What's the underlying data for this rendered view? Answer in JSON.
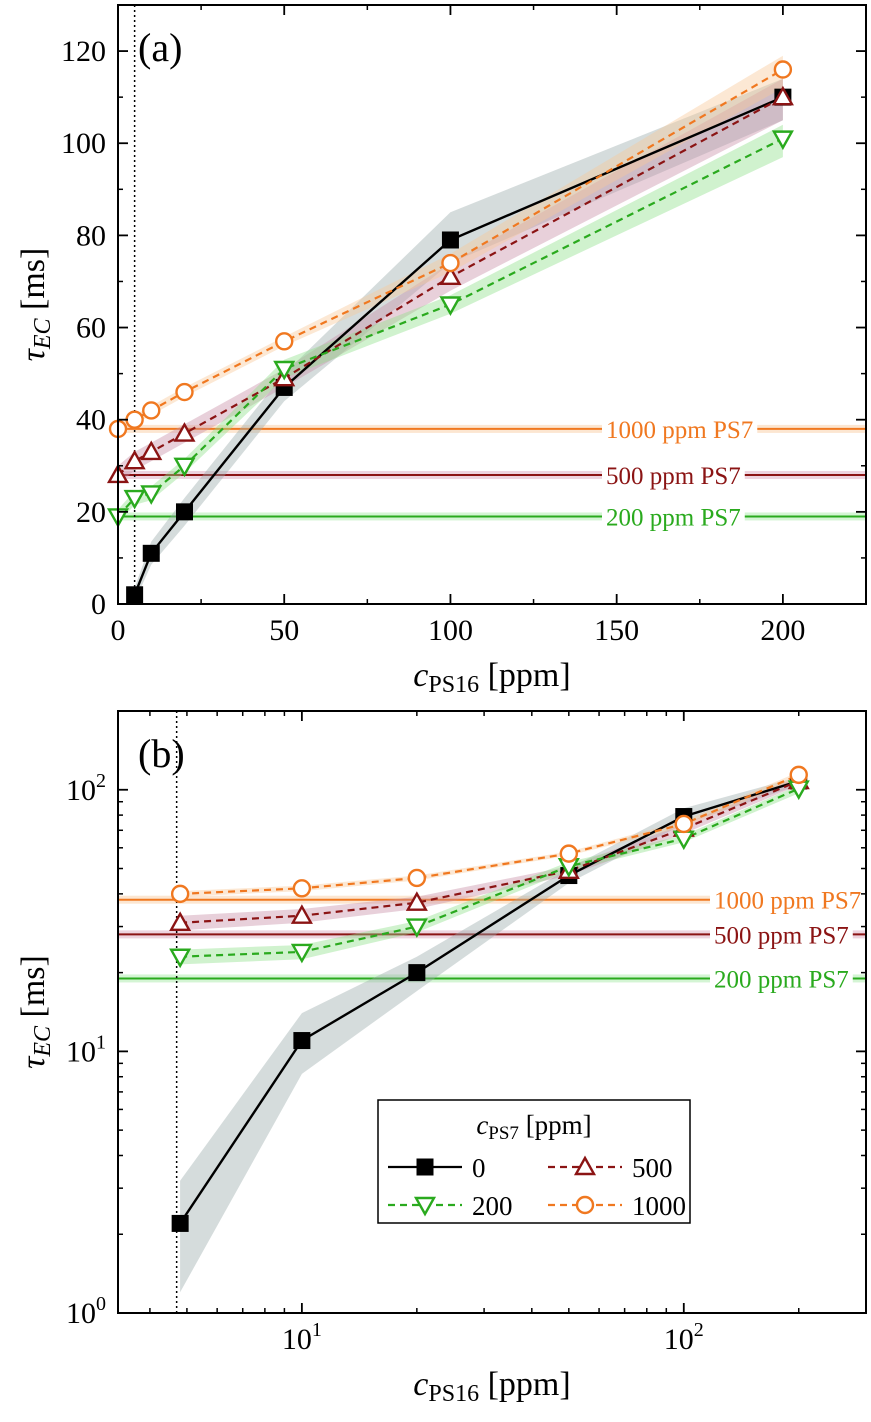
{
  "chart_data": [
    {
      "panel": "(a)",
      "type": "line",
      "xscale": "linear",
      "yscale": "linear",
      "xlim": [
        0,
        225
      ],
      "ylim": [
        0,
        130
      ],
      "xticks": [
        0,
        50,
        100,
        150,
        200
      ],
      "xtick_labels": [
        "0",
        "50",
        "100",
        "150",
        "200"
      ],
      "yticks": [
        0,
        20,
        40,
        60,
        80,
        100,
        120
      ],
      "ytick_labels": [
        "0",
        "20",
        "40",
        "60",
        "80",
        "100",
        "120"
      ],
      "xlabel": {
        "main": "c",
        "sub": "PS16",
        "unit": " [ppm]"
      },
      "ylabel": {
        "main": "τ",
        "sub": "EC",
        "unit": " [ms]"
      },
      "vline_x": 5,
      "series": [
        {
          "name": "0",
          "color": "#000000",
          "marker": "square",
          "dashed": false,
          "band": "#9aabab",
          "x": [
            5,
            10,
            20,
            50,
            100,
            200
          ],
          "y": [
            2,
            11,
            20,
            47,
            79,
            110
          ],
          "lo": [
            0.5,
            8.5,
            17,
            44,
            74,
            105
          ],
          "hi": [
            3.5,
            13.5,
            23,
            50,
            85,
            114
          ]
        },
        {
          "name": "500",
          "color": "#8b1414",
          "marker": "triangle-up",
          "dashed": true,
          "band": "#c890a8",
          "x": [
            0,
            5,
            10,
            20,
            50,
            100,
            200
          ],
          "y": [
            28,
            31,
            33,
            37,
            49,
            71,
            110
          ],
          "lo": [
            26,
            29,
            31,
            35,
            47,
            68,
            105
          ],
          "hi": [
            30,
            33,
            35,
            39,
            51,
            74,
            114
          ]
        },
        {
          "name": "200",
          "color": "#2aaa1e",
          "marker": "triangle-down",
          "dashed": true,
          "band": "#8fe08a",
          "x": [
            0,
            5,
            10,
            20,
            50,
            100,
            200
          ],
          "y": [
            19,
            23,
            24,
            30,
            51,
            65,
            101
          ],
          "lo": [
            17.5,
            21.5,
            22.5,
            28.5,
            49,
            63,
            97
          ],
          "hi": [
            20.5,
            24.5,
            25.5,
            31.5,
            53,
            67,
            104
          ]
        },
        {
          "name": "1000",
          "color": "#f07820",
          "marker": "circle",
          "dashed": true,
          "band": "#f8c898",
          "x": [
            0,
            5,
            10,
            20,
            50,
            100,
            200
          ],
          "y": [
            38,
            40,
            42,
            46,
            57,
            74,
            116
          ],
          "lo": [
            37,
            39,
            41,
            45,
            56,
            72,
            112
          ],
          "hi": [
            39,
            41,
            43,
            47,
            58,
            76,
            119
          ]
        }
      ],
      "reference_lines": [
        {
          "label": "1000 ppm PS7",
          "y": 38,
          "color": "#f07820",
          "band": "#f8c898"
        },
        {
          "label": "500 ppm PS7",
          "y": 28,
          "color": "#8b1414",
          "band": "#d8a0b8"
        },
        {
          "label": "200 ppm PS7",
          "y": 19,
          "color": "#2aaa1e",
          "band": "#a0e8a0"
        }
      ]
    },
    {
      "panel": "(b)",
      "type": "line",
      "xscale": "log",
      "yscale": "log",
      "xlim": [
        3.3,
        300
      ],
      "ylim": [
        1,
        200
      ],
      "xticks": [
        10,
        100
      ],
      "xtick_labels": [
        {
          "base": "10",
          "exp": "1"
        },
        {
          "base": "10",
          "exp": "2"
        }
      ],
      "yticks": [
        1,
        10,
        100
      ],
      "ytick_labels": [
        {
          "base": "10",
          "exp": "0"
        },
        {
          "base": "10",
          "exp": "1"
        },
        {
          "base": "10",
          "exp": "2"
        }
      ],
      "xlabel": {
        "main": "c",
        "sub": "PS16",
        "unit": " [ppm]"
      },
      "ylabel": {
        "main": "τ",
        "sub": "EC",
        "unit": " [ms]"
      },
      "vline_x": 4.7,
      "series": [
        {
          "name": "0",
          "color": "#000000",
          "marker": "square",
          "dashed": false,
          "band": "#9aabab",
          "x": [
            4.8,
            10,
            20,
            50,
            100,
            200
          ],
          "y": [
            2.2,
            11,
            20,
            47,
            79,
            108
          ],
          "lo": [
            1.2,
            8.2,
            17,
            44,
            74,
            104
          ],
          "hi": [
            3.2,
            14,
            23,
            50,
            85,
            112
          ]
        },
        {
          "name": "500",
          "color": "#8b1414",
          "marker": "triangle-up",
          "dashed": true,
          "band": "#c890a8",
          "x": [
            4.8,
            10,
            20,
            50,
            100,
            200
          ],
          "y": [
            31,
            33,
            37,
            49,
            71,
            108
          ],
          "lo": [
            29,
            31,
            35,
            47,
            68,
            104
          ],
          "hi": [
            33,
            35,
            39,
            51,
            74,
            112
          ]
        },
        {
          "name": "200",
          "color": "#2aaa1e",
          "marker": "triangle-down",
          "dashed": true,
          "band": "#8fe08a",
          "x": [
            4.8,
            10,
            20,
            50,
            100,
            200
          ],
          "y": [
            23,
            24,
            30,
            51,
            65,
            101
          ],
          "lo": [
            21.5,
            22.5,
            28.5,
            49,
            63,
            97
          ],
          "hi": [
            24.5,
            25.5,
            31.5,
            53,
            67,
            104
          ]
        },
        {
          "name": "1000",
          "color": "#f07820",
          "marker": "circle",
          "dashed": true,
          "band": "#f8c898",
          "x": [
            4.8,
            10,
            20,
            50,
            100,
            200
          ],
          "y": [
            40,
            42,
            46,
            57,
            74,
            114
          ],
          "lo": [
            39,
            41,
            45,
            56,
            72,
            110
          ],
          "hi": [
            41,
            43,
            47,
            58,
            76,
            117
          ]
        }
      ],
      "reference_lines": [
        {
          "label": "1000 ppm PS7",
          "y": 38,
          "color": "#f07820",
          "band": "#f8c898"
        },
        {
          "label": "500 ppm PS7",
          "y": 28,
          "color": "#8b1414",
          "band": "#d8a0b8"
        },
        {
          "label": "200 ppm PS7",
          "y": 19,
          "color": "#2aaa1e",
          "band": "#a0e8a0"
        }
      ],
      "legend": {
        "title": {
          "main": "c",
          "sub": "PS7",
          "unit": " [ppm]"
        },
        "entries": [
          "0",
          "500",
          "200",
          "1000"
        ]
      }
    }
  ]
}
